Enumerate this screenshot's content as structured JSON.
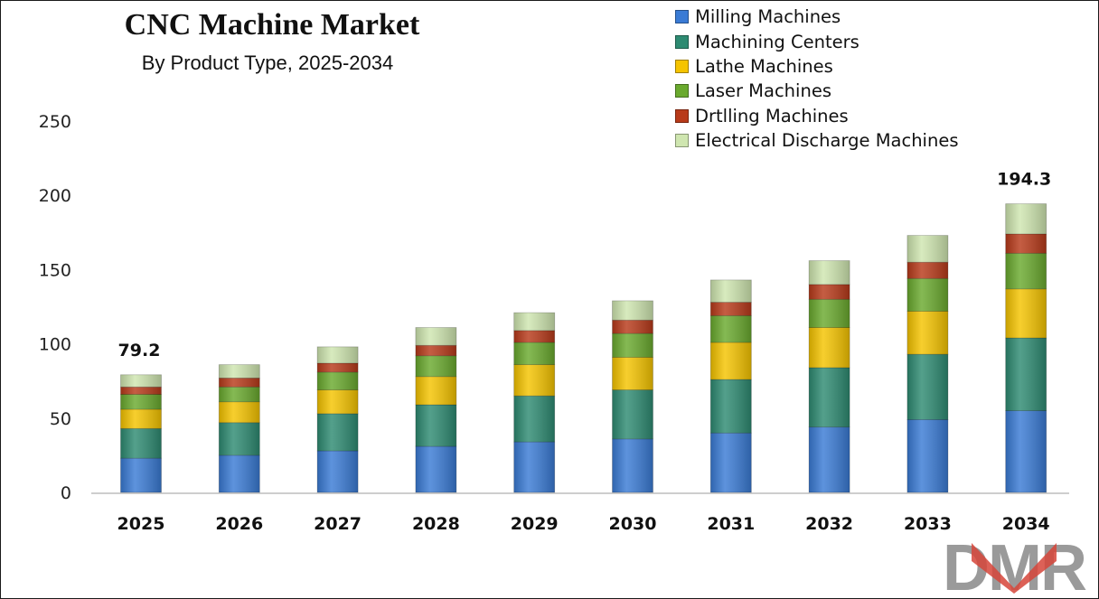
{
  "chart_data": {
    "type": "bar",
    "stacked": true,
    "title": "CNC Machine Market",
    "subtitle": "By Product Type, 2025-2034",
    "categories": [
      "2025",
      "2026",
      "2027",
      "2028",
      "2029",
      "2030",
      "2031",
      "2032",
      "2033",
      "2034"
    ],
    "series": [
      {
        "name": "Milling Machines",
        "color": "#3a7bd5",
        "values": [
          23,
          25,
          28,
          31,
          34,
          36,
          40,
          44,
          49,
          55
        ]
      },
      {
        "name": "Machining Centers",
        "color": "#2e8b72",
        "values": [
          20,
          22,
          25,
          28,
          31,
          33,
          36,
          40,
          44,
          49
        ]
      },
      {
        "name": "Lathe Machines",
        "color": "#f5c400",
        "values": [
          13,
          14,
          16,
          19,
          21,
          22,
          25,
          27,
          29,
          33
        ]
      },
      {
        "name": "Laser Machines",
        "color": "#6aaa2e",
        "values": [
          10,
          10,
          12,
          14,
          15,
          16,
          18,
          19,
          22,
          24
        ]
      },
      {
        "name": "Drtlling Machines",
        "color": "#b83a1a",
        "values": [
          5,
          6,
          6,
          7,
          8,
          9,
          9,
          10,
          11,
          13
        ]
      },
      {
        "name": "Electrical Discharge Machines",
        "color": "#cfe6b0",
        "values": [
          8.2,
          9,
          11,
          12,
          12,
          13,
          15,
          16,
          18,
          20.3
        ]
      }
    ],
    "totals_labels": {
      "2025": "79.2",
      "2034": "194.3"
    },
    "yticks": [
      0,
      50,
      100,
      150,
      200,
      250
    ],
    "ylim": [
      0,
      250
    ],
    "legend_position": "top-right",
    "grid": false
  },
  "logo": {
    "text": "DMR"
  }
}
